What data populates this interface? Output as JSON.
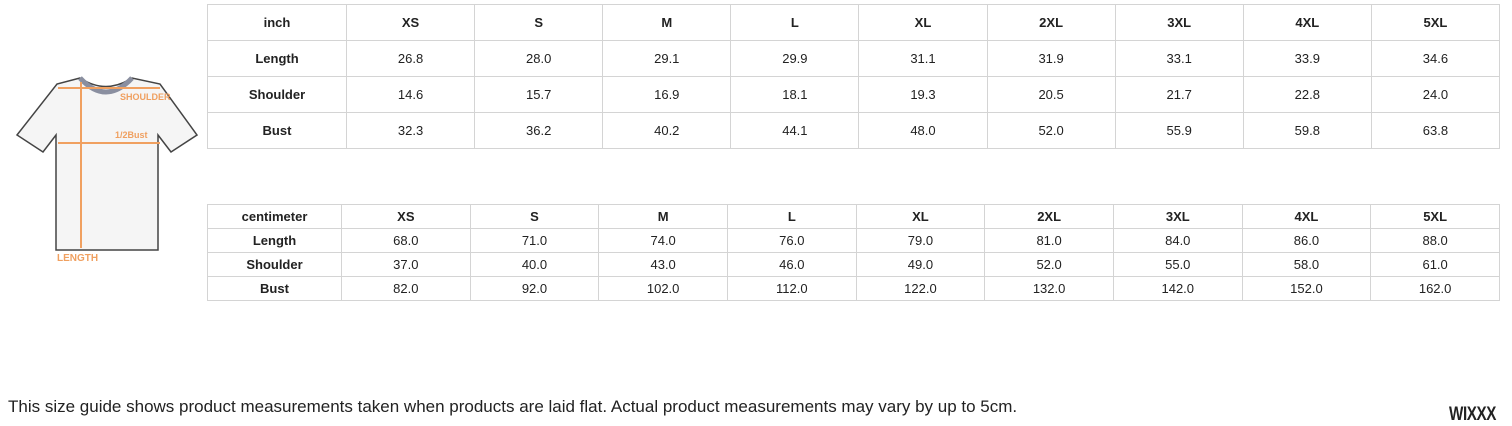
{
  "illustration": {
    "labels": {
      "shoulder": "SHOULDER",
      "bust": "1/2Bust",
      "length": "LENGTH"
    },
    "accent": "#f0a060"
  },
  "inch_table": {
    "headers": [
      "inch",
      "XS",
      "S",
      "M",
      "L",
      "XL",
      "2XL",
      "3XL",
      "4XL",
      "5XL"
    ],
    "rows": [
      [
        "Length",
        "26.8",
        "28.0",
        "29.1",
        "29.9",
        "31.1",
        "31.9",
        "33.1",
        "33.9",
        "34.6"
      ],
      [
        "Shoulder",
        "14.6",
        "15.7",
        "16.9",
        "18.1",
        "19.3",
        "20.5",
        "21.7",
        "22.8",
        "24.0"
      ],
      [
        "Bust",
        "32.3",
        "36.2",
        "40.2",
        "44.1",
        "48.0",
        "52.0",
        "55.9",
        "59.8",
        "63.8"
      ]
    ]
  },
  "cm_table": {
    "headers": [
      "centimeter",
      "XS",
      "S",
      "M",
      "L",
      "XL",
      "2XL",
      "3XL",
      "4XL",
      "5XL"
    ],
    "rows": [
      [
        "Length",
        "68.0",
        "71.0",
        "74.0",
        "76.0",
        "79.0",
        "81.0",
        "84.0",
        "86.0",
        "88.0"
      ],
      [
        "Shoulder",
        "37.0",
        "40.0",
        "43.0",
        "46.0",
        "49.0",
        "52.0",
        "55.0",
        "58.0",
        "61.0"
      ],
      [
        "Bust",
        "82.0",
        "92.0",
        "102.0",
        "112.0",
        "122.0",
        "132.0",
        "142.0",
        "152.0",
        "162.0"
      ]
    ]
  },
  "note": "This size guide shows product measurements taken when products are laid flat. Actual product measurements may vary by up to 5cm.",
  "brand": "WIXXX"
}
